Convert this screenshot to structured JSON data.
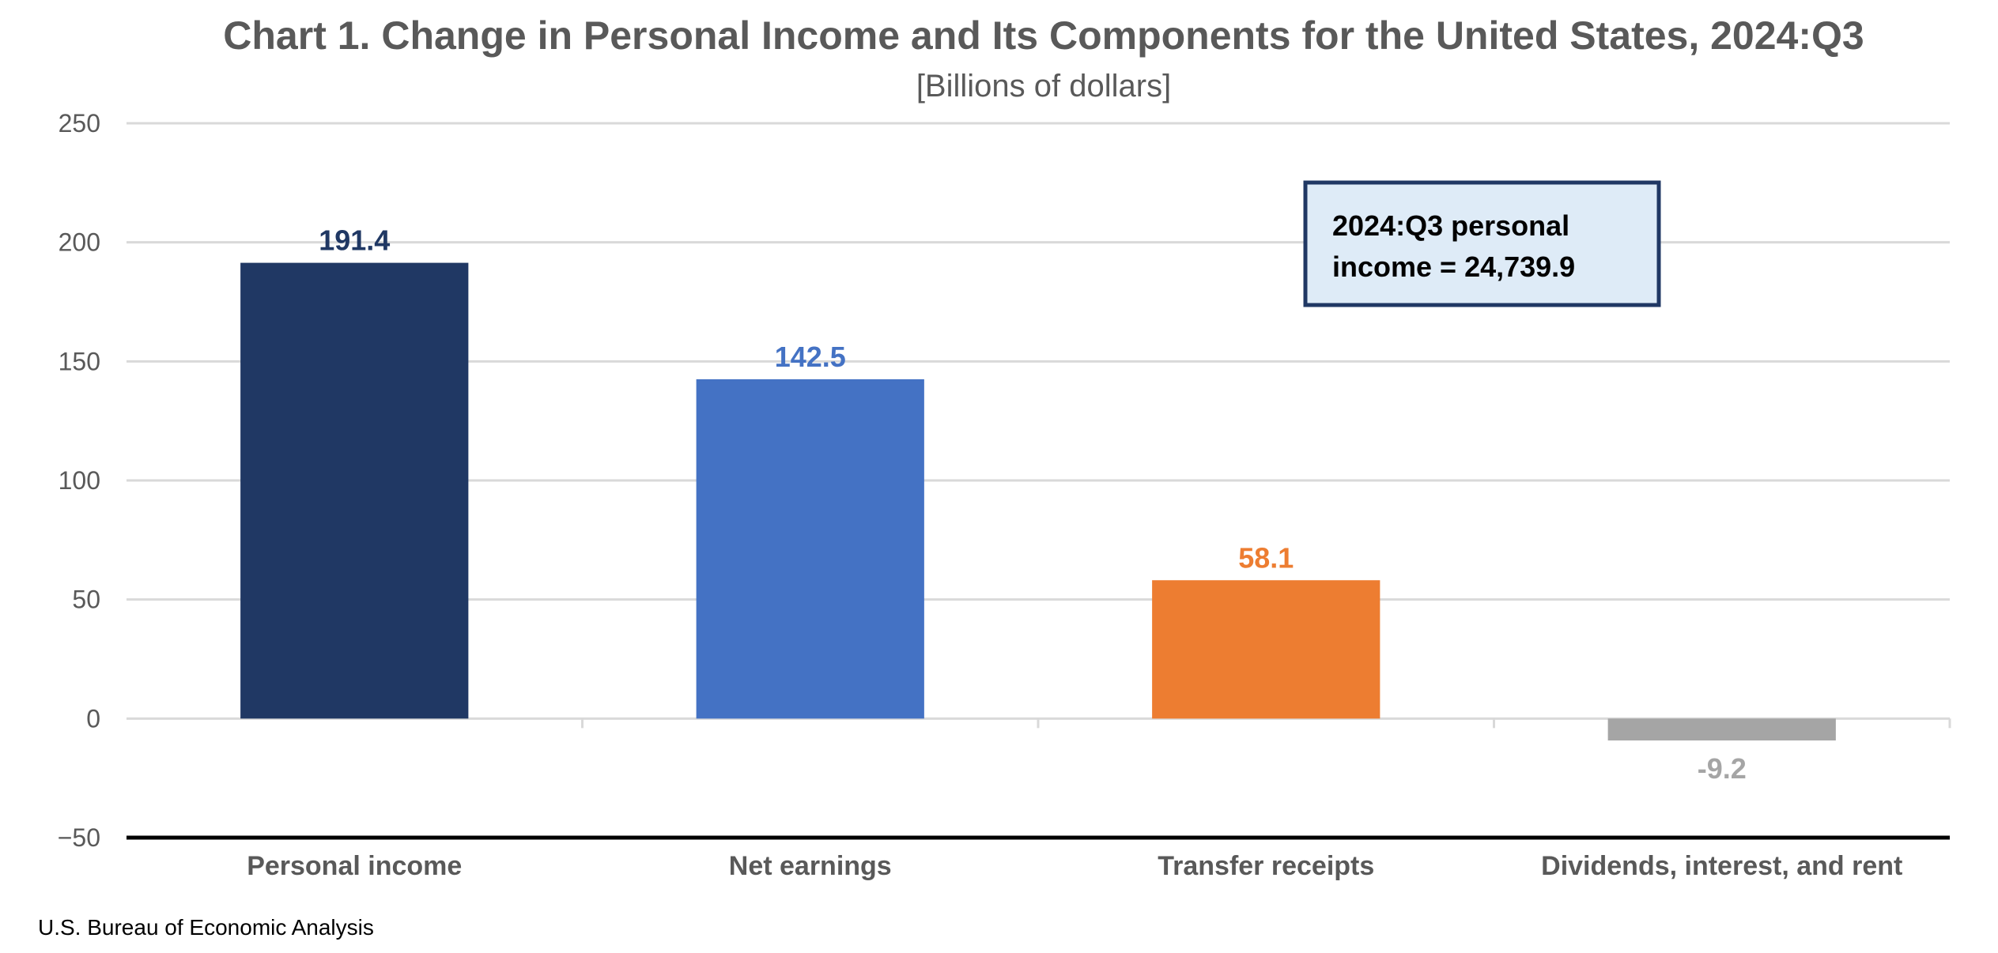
{
  "chart_data": {
    "type": "bar",
    "title": "Chart 1. Change in Personal Income and Its Components for the United States, 2024:Q3",
    "subtitle": "[Billions of dollars]",
    "categories": [
      "Personal income",
      "Net earnings",
      "Transfer receipts",
      "Dividends, interest, and rent"
    ],
    "values": [
      191.4,
      142.5,
      58.1,
      -9.2
    ],
    "data_labels": [
      "191.4",
      "142.5",
      "58.1",
      "-9.2"
    ],
    "colors": [
      "#203864",
      "#4472C4",
      "#ED7D31",
      "#A5A5A5"
    ],
    "ylim": [
      -50,
      250
    ],
    "yticks": [
      250,
      200,
      150,
      100,
      50,
      0,
      -50
    ],
    "ytick_labels": [
      "250",
      "200",
      "150",
      "100",
      "50",
      "0",
      "−50"
    ],
    "grid": true,
    "legend": "none",
    "annotation": {
      "lines": [
        "2024:Q3 personal",
        "income = 24,739.9"
      ],
      "fill": "#DEEBF7",
      "border": "#203864",
      "placement": "top-right"
    },
    "source": "U.S. Bureau of Economic Analysis"
  }
}
